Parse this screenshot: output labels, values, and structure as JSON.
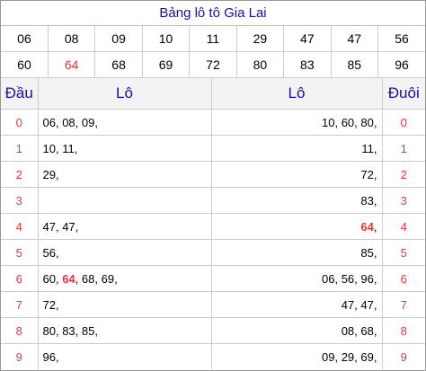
{
  "title": "Bảng lô tô Gia Lai",
  "numbers_row1": [
    "06",
    "08",
    "09",
    "10",
    "11",
    "29",
    "47",
    "47",
    "56"
  ],
  "numbers_row2": [
    "60",
    "64",
    "68",
    "69",
    "72",
    "80",
    "83",
    "85",
    "96"
  ],
  "highlight_number": "64",
  "headers": {
    "dau": "Đầu",
    "lo_left": "Lô",
    "lo_right": "Lô",
    "duoi": "Đuôi"
  },
  "rows": [
    {
      "dau": "0",
      "lo_left": [
        "06",
        "08",
        "09"
      ],
      "lo_right": [
        "10",
        "60",
        "80"
      ],
      "duoi": "0"
    },
    {
      "dau": "1",
      "lo_left": [
        "10",
        "11"
      ],
      "lo_right": [
        "11"
      ],
      "duoi": "1"
    },
    {
      "dau": "2",
      "lo_left": [
        "29"
      ],
      "lo_right": [
        "72"
      ],
      "duoi": "2"
    },
    {
      "dau": "3",
      "lo_left": [],
      "lo_right": [
        "83"
      ],
      "duoi": "3"
    },
    {
      "dau": "4",
      "lo_left": [
        "47",
        "47"
      ],
      "lo_right": [
        "64"
      ],
      "duoi": "4"
    },
    {
      "dau": "5",
      "lo_left": [
        "56"
      ],
      "lo_right": [
        "85"
      ],
      "duoi": "5"
    },
    {
      "dau": "6",
      "lo_left": [
        "60",
        "64",
        "68",
        "69"
      ],
      "lo_right": [
        "06",
        "56",
        "96"
      ],
      "duoi": "6"
    },
    {
      "dau": "7",
      "lo_left": [
        "72"
      ],
      "lo_right": [
        "47",
        "47"
      ],
      "duoi": "7"
    },
    {
      "dau": "8",
      "lo_left": [
        "80",
        "83",
        "85"
      ],
      "lo_right": [
        "08",
        "68"
      ],
      "duoi": "8"
    },
    {
      "dau": "9",
      "lo_left": [
        "96"
      ],
      "lo_right": [
        "09",
        "29",
        "69"
      ],
      "duoi": "9"
    }
  ],
  "colors": {
    "title": "#1a0dab",
    "highlight": "#e8363b",
    "header_bg": "#f3f3f3"
  }
}
